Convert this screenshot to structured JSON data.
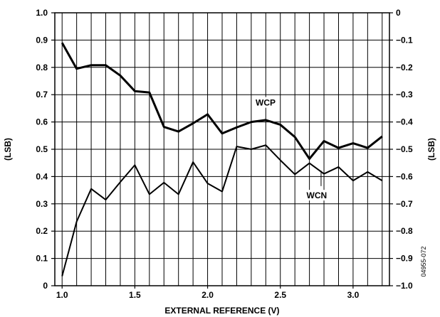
{
  "chart_data": {
    "type": "line",
    "xlabel": "EXTERNAL REFERENCE (V)",
    "ylabel_left": "(LSB)",
    "ylabel_right": "(LSB)",
    "xlim": [
      0.95,
      3.25
    ],
    "ylim_left": [
      0,
      1.0
    ],
    "ylim_right": [
      -1.0,
      0
    ],
    "x_ticks": [
      1.0,
      1.5,
      2.0,
      2.5,
      3.0
    ],
    "x_tick_labels": [
      "1.0",
      "1.5",
      "2.0",
      "2.5",
      "3.0"
    ],
    "y_left_ticks": [
      0,
      0.1,
      0.2,
      0.3,
      0.4,
      0.5,
      0.6,
      0.7,
      0.8,
      0.9,
      1.0
    ],
    "y_left_tick_labels": [
      "0",
      "0.1",
      "0.2",
      "0.3",
      "0.4",
      "0.5",
      "0.6",
      "0.7",
      "0.8",
      "0.9",
      "1.0"
    ],
    "y_right_ticks": [
      0,
      -0.1,
      -0.2,
      -0.3,
      -0.4,
      -0.5,
      -0.6,
      -0.7,
      -0.8,
      -0.9,
      -1.0
    ],
    "y_right_tick_labels": [
      "0",
      "−0.1",
      "−0.2",
      "−0.3",
      "−0.4",
      "−0.5",
      "−0.6",
      "−0.7",
      "−0.8",
      "−0.9",
      "−1.0"
    ],
    "grid": true,
    "series": [
      {
        "name": "WCP",
        "axis": "left",
        "x": [
          1.0,
          1.1,
          1.2,
          1.3,
          1.4,
          1.5,
          1.6,
          1.7,
          1.8,
          1.9,
          2.0,
          2.1,
          2.2,
          2.3,
          2.4,
          2.5,
          2.6,
          2.7,
          2.8,
          2.9,
          3.0,
          3.1,
          3.2
        ],
        "y": [
          0.89,
          0.795,
          0.808,
          0.808,
          0.77,
          0.713,
          0.708,
          0.582,
          0.565,
          0.595,
          0.628,
          0.558,
          0.58,
          0.6,
          0.607,
          0.59,
          0.545,
          0.465,
          0.53,
          0.505,
          0.522,
          0.505,
          0.547
        ]
      },
      {
        "name": "WCN",
        "axis": "right",
        "x": [
          1.0,
          1.1,
          1.2,
          1.3,
          1.4,
          1.5,
          1.6,
          1.7,
          1.8,
          1.9,
          2.0,
          2.1,
          2.2,
          2.3,
          2.4,
          2.5,
          2.6,
          2.7,
          2.8,
          2.9,
          3.0,
          3.1,
          3.2
        ],
        "y": [
          -0.965,
          -0.765,
          -0.645,
          -0.685,
          -0.62,
          -0.558,
          -0.665,
          -0.622,
          -0.665,
          -0.547,
          -0.625,
          -0.655,
          -0.49,
          -0.5,
          -0.485,
          -0.54,
          -0.592,
          -0.551,
          -0.59,
          -0.565,
          -0.615,
          -0.583,
          -0.615
        ]
      }
    ],
    "figure_id": "04955-072"
  }
}
